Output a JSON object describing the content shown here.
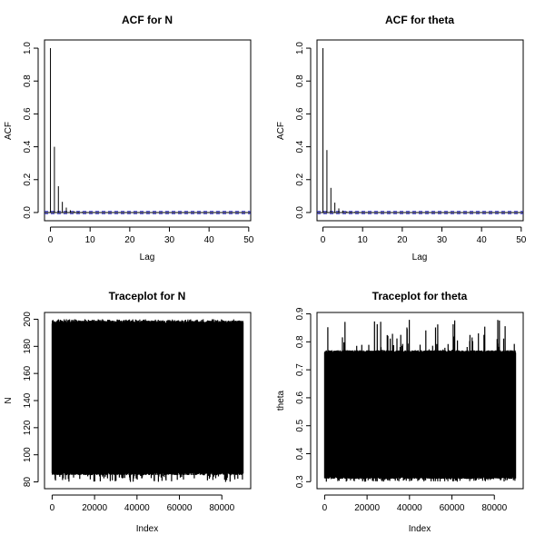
{
  "chart_data": [
    {
      "type": "bar",
      "title": "ACF for N",
      "xlabel": "Lag",
      "ylabel": "ACF",
      "xlim": [
        -1.5,
        50.5
      ],
      "ylim": [
        -0.05,
        1.05
      ],
      "xticks": [
        0,
        10,
        20,
        30,
        40,
        50
      ],
      "yticks": [
        0.0,
        0.2,
        0.4,
        0.6,
        0.8,
        1.0
      ],
      "lags": [
        0,
        1,
        2,
        3,
        4,
        5,
        6,
        7,
        8,
        9,
        10,
        11,
        12,
        13,
        14,
        15,
        16,
        17,
        18,
        19,
        20,
        21,
        22,
        23,
        24,
        25,
        26,
        27,
        28,
        29,
        30,
        31,
        32,
        33,
        34,
        35,
        36,
        37,
        38,
        39,
        40,
        41,
        42,
        43,
        44,
        45,
        46,
        47,
        48,
        49,
        50
      ],
      "values": [
        1.0,
        0.4,
        0.16,
        0.065,
        0.03,
        0.014,
        0.008,
        0.005,
        0.004,
        0.003,
        0.003,
        0.003,
        0.002,
        0.002,
        0.002,
        0.002,
        0.002,
        0.002,
        0.002,
        0.002,
        0.002,
        0.002,
        0.002,
        0.002,
        0.002,
        0.002,
        0.002,
        0.002,
        0.002,
        0.002,
        0.002,
        0.002,
        0.002,
        0.002,
        0.002,
        0.002,
        0.002,
        0.002,
        0.002,
        0.002,
        0.002,
        0.002,
        0.002,
        0.002,
        0.002,
        0.002,
        0.002,
        0.002,
        0.002,
        0.002,
        0.002
      ],
      "confidence_band": 0.007,
      "band_color": "#3333cc",
      "grid": false
    },
    {
      "type": "bar",
      "title": "ACF for theta",
      "xlabel": "Lag",
      "ylabel": "ACF",
      "xlim": [
        -1.5,
        50.5
      ],
      "ylim": [
        -0.05,
        1.05
      ],
      "xticks": [
        0,
        10,
        20,
        30,
        40,
        50
      ],
      "yticks": [
        0.0,
        0.2,
        0.4,
        0.6,
        0.8,
        1.0
      ],
      "lags": [
        0,
        1,
        2,
        3,
        4,
        5,
        6,
        7,
        8,
        9,
        10,
        11,
        12,
        13,
        14,
        15,
        16,
        17,
        18,
        19,
        20,
        21,
        22,
        23,
        24,
        25,
        26,
        27,
        28,
        29,
        30,
        31,
        32,
        33,
        34,
        35,
        36,
        37,
        38,
        39,
        40,
        41,
        42,
        43,
        44,
        45,
        46,
        47,
        48,
        49,
        50
      ],
      "values": [
        1.0,
        0.38,
        0.15,
        0.06,
        0.025,
        0.012,
        0.007,
        0.005,
        0.004,
        0.003,
        0.003,
        0.003,
        0.002,
        0.002,
        0.002,
        0.002,
        0.002,
        0.002,
        0.002,
        0.002,
        0.002,
        0.002,
        0.002,
        0.002,
        0.002,
        0.002,
        0.002,
        0.002,
        0.002,
        0.002,
        0.002,
        0.002,
        0.002,
        0.002,
        0.002,
        0.002,
        0.002,
        0.002,
        0.002,
        0.002,
        0.002,
        0.002,
        0.002,
        0.002,
        0.002,
        0.002,
        0.002,
        0.002,
        0.002,
        0.002,
        0.002
      ],
      "confidence_band": 0.007,
      "band_color": "#3333cc",
      "grid": false
    },
    {
      "type": "line",
      "title": "Traceplot for N",
      "xlabel": "Index",
      "ylabel": "N",
      "xlim": [
        -3600,
        93600
      ],
      "ylim": [
        75,
        205
      ],
      "xticks": [
        0,
        20000,
        40000,
        60000,
        80000
      ],
      "yticks": [
        80,
        100,
        120,
        140,
        160,
        180,
        200
      ],
      "n_iterations": 90000,
      "value_range": [
        80,
        200
      ],
      "lower_envelope_typical": 85,
      "upper_envelope_typical": 199,
      "color": "#000000"
    },
    {
      "type": "line",
      "title": "Traceplot for theta",
      "xlabel": "Index",
      "ylabel": "theta",
      "xlim": [
        -3600,
        93600
      ],
      "ylim": [
        0.275,
        0.905
      ],
      "xticks": [
        0,
        20000,
        40000,
        60000,
        80000
      ],
      "yticks": [
        0.3,
        0.4,
        0.5,
        0.6,
        0.7,
        0.8,
        0.9
      ],
      "n_iterations": 90000,
      "value_range": [
        0.3,
        0.88
      ],
      "lower_envelope_typical": 0.31,
      "upper_envelope_typical": 0.77,
      "color": "#000000"
    }
  ]
}
